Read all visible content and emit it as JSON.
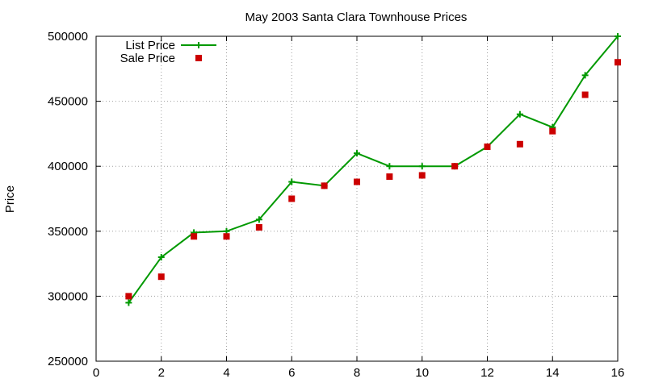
{
  "chart_data": {
    "type": "line",
    "title": "May 2003 Santa Clara Townhouse Prices",
    "xlabel": "",
    "ylabel": "Price",
    "xlim": [
      0,
      16
    ],
    "ylim": [
      250000,
      500000
    ],
    "xticks": [
      0,
      2,
      4,
      6,
      8,
      10,
      12,
      14,
      16
    ],
    "yticks": [
      250000,
      300000,
      350000,
      400000,
      450000,
      500000
    ],
    "grid": true,
    "legend_position": "top-left",
    "x": [
      1,
      2,
      3,
      4,
      5,
      6,
      7,
      8,
      9,
      10,
      11,
      12,
      13,
      14,
      15,
      16
    ],
    "series": [
      {
        "name": "List Price",
        "style": "linespoints",
        "marker": "plus",
        "color": "#009900",
        "values": [
          295000,
          330000,
          349000,
          350000,
          359000,
          388000,
          385000,
          410000,
          400000,
          400000,
          400000,
          415000,
          440000,
          430000,
          470000,
          500000
        ]
      },
      {
        "name": "Sale Price",
        "style": "points",
        "marker": "square",
        "color": "#cc0000",
        "values": [
          300000,
          315000,
          346000,
          346000,
          353000,
          375000,
          385000,
          388000,
          392000,
          393000,
          400000,
          415000,
          417000,
          427000,
          455000,
          480000
        ]
      }
    ]
  }
}
